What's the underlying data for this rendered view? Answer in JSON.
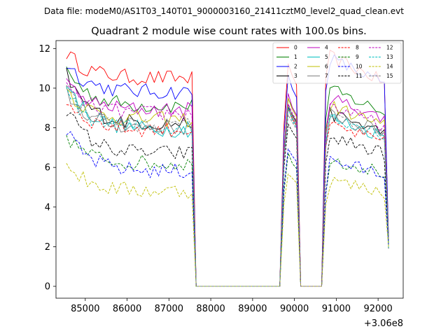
{
  "chart_data": {
    "type": "line",
    "suptitle": "Data file: modeM0/AS1T03_140T01_9000003160_21411cztM0_level2_quad_clean.evt",
    "title": "Quadrant 2 module wise count rates with 100.0s bins.",
    "xlabel": "",
    "ylabel": "",
    "x_offset_label": "+3.06e8",
    "xlim": [
      84300,
      92600
    ],
    "ylim": [
      -0.6,
      12.4
    ],
    "xticks": [
      85000,
      86000,
      87000,
      88000,
      89000,
      90000,
      91000,
      92000
    ],
    "yticks": [
      0,
      2,
      4,
      6,
      8,
      10,
      12
    ],
    "grid": false,
    "legend_placement": "top-right",
    "legend_columns": 4,
    "segments": [
      [
        84550,
        87550
      ],
      [
        87550,
        87650
      ],
      [
        89650,
        89750
      ],
      [
        89750,
        90050
      ],
      [
        90050,
        90150
      ],
      [
        90650,
        90750
      ],
      [
        90750,
        92150
      ],
      [
        92150,
        92250
      ]
    ],
    "series": [
      {
        "name": "0",
        "color": "#ff0000",
        "dash": "solid",
        "level": 10.5,
        "start": 11.8,
        "peak1": 11.3,
        "peak2": 11.7
      },
      {
        "name": "1",
        "color": "#008000",
        "dash": "solid",
        "level": 9.1,
        "start": 11.0,
        "peak1": 9.6,
        "peak2": 10.0
      },
      {
        "name": "2",
        "color": "#0000ff",
        "dash": "solid",
        "level": 9.8,
        "start": 11.3,
        "peak1": 10.6,
        "peak2": 11.6
      },
      {
        "name": "3",
        "color": "#000000",
        "dash": "solid",
        "level": 8.2,
        "start": 10.7,
        "peak1": 9.2,
        "peak2": 8.8
      },
      {
        "name": "4",
        "color": "#bf00bf",
        "dash": "solid",
        "level": 8.9,
        "start": 10.2,
        "peak1": 9.6,
        "peak2": 9.6
      },
      {
        "name": "5",
        "color": "#00bfbf",
        "dash": "solid",
        "level": 7.9,
        "start": 10.4,
        "peak1": 9.0,
        "peak2": 8.6
      },
      {
        "name": "6",
        "color": "#bfbf00",
        "dash": "solid",
        "level": 8.4,
        "start": 10.0,
        "peak1": 9.5,
        "peak2": 9.2
      },
      {
        "name": "7",
        "color": "#808080",
        "dash": "solid",
        "level": 8.0,
        "start": 9.8,
        "peak1": 9.1,
        "peak2": 8.8
      },
      {
        "name": "8",
        "color": "#ff0000",
        "dash": "dashed",
        "level": 7.9,
        "start": 9.4,
        "peak1": 9.0,
        "peak2": 8.2
      },
      {
        "name": "9",
        "color": "#008000",
        "dash": "dashed",
        "level": 6.2,
        "start": 7.6,
        "peak1": 6.6,
        "peak2": 6.5
      },
      {
        "name": "10",
        "color": "#0000ff",
        "dash": "dashed",
        "level": 5.8,
        "start": 7.8,
        "peak1": 7.0,
        "peak2": 6.4
      },
      {
        "name": "11",
        "color": "#000000",
        "dash": "dashed",
        "level": 6.7,
        "start": 9.0,
        "peak1": 8.3,
        "peak2": 7.6
      },
      {
        "name": "12",
        "color": "#bf00bf",
        "dash": "dashed",
        "level": 8.7,
        "start": 10.1,
        "peak1": 9.3,
        "peak2": 9.2
      },
      {
        "name": "13",
        "color": "#00bfbf",
        "dash": "dashed",
        "level": 8.0,
        "start": 9.7,
        "peak1": 8.9,
        "peak2": 8.7
      },
      {
        "name": "14",
        "color": "#bfbf00",
        "dash": "dashed",
        "level": 4.8,
        "start": 6.2,
        "peak1": 5.8,
        "peak2": 5.4
      },
      {
        "name": "15",
        "color": "#808080",
        "dash": "dashed",
        "level": 8.1,
        "start": 10.0,
        "peak1": 8.8,
        "peak2": 8.7
      }
    ]
  }
}
